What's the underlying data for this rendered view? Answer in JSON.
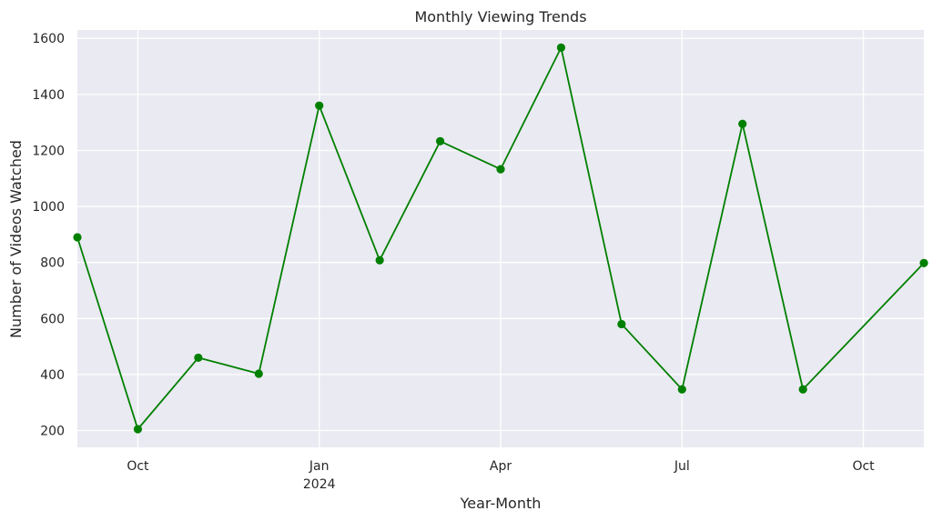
{
  "chart_data": {
    "type": "line",
    "title": "Monthly Viewing Trends",
    "xlabel": "Year-Month",
    "ylabel": "Number of Videos Watched",
    "ylim": [
      140,
      1630
    ],
    "xlim": [
      "2023-09",
      "2024-11"
    ],
    "grid": true,
    "legend": "none",
    "colors": {
      "line": "#008000",
      "background": "#eaeaf2",
      "grid": "#ffffff"
    },
    "y_ticks": [
      200,
      400,
      600,
      800,
      1000,
      1200,
      1400,
      1600
    ],
    "x_ticks": [
      {
        "date": "2023-10",
        "label": "Oct",
        "sublabel": ""
      },
      {
        "date": "2024-01",
        "label": "Jan",
        "sublabel": "2024"
      },
      {
        "date": "2024-04",
        "label": "Apr",
        "sublabel": ""
      },
      {
        "date": "2024-07",
        "label": "Jul",
        "sublabel": ""
      },
      {
        "date": "2024-10",
        "label": "Oct",
        "sublabel": ""
      }
    ],
    "series": [
      {
        "x": [
          "2023-09",
          "2023-10",
          "2023-11",
          "2023-12",
          "2024-01",
          "2024-02",
          "2024-03",
          "2024-04",
          "2024-05",
          "2024-06",
          "2024-07",
          "2024-08",
          "2024-09",
          "2024-11"
        ],
        "values": [
          890,
          205,
          460,
          403,
          1360,
          808,
          1233,
          1133,
          1567,
          580,
          347,
          1295,
          347,
          798
        ]
      }
    ]
  }
}
